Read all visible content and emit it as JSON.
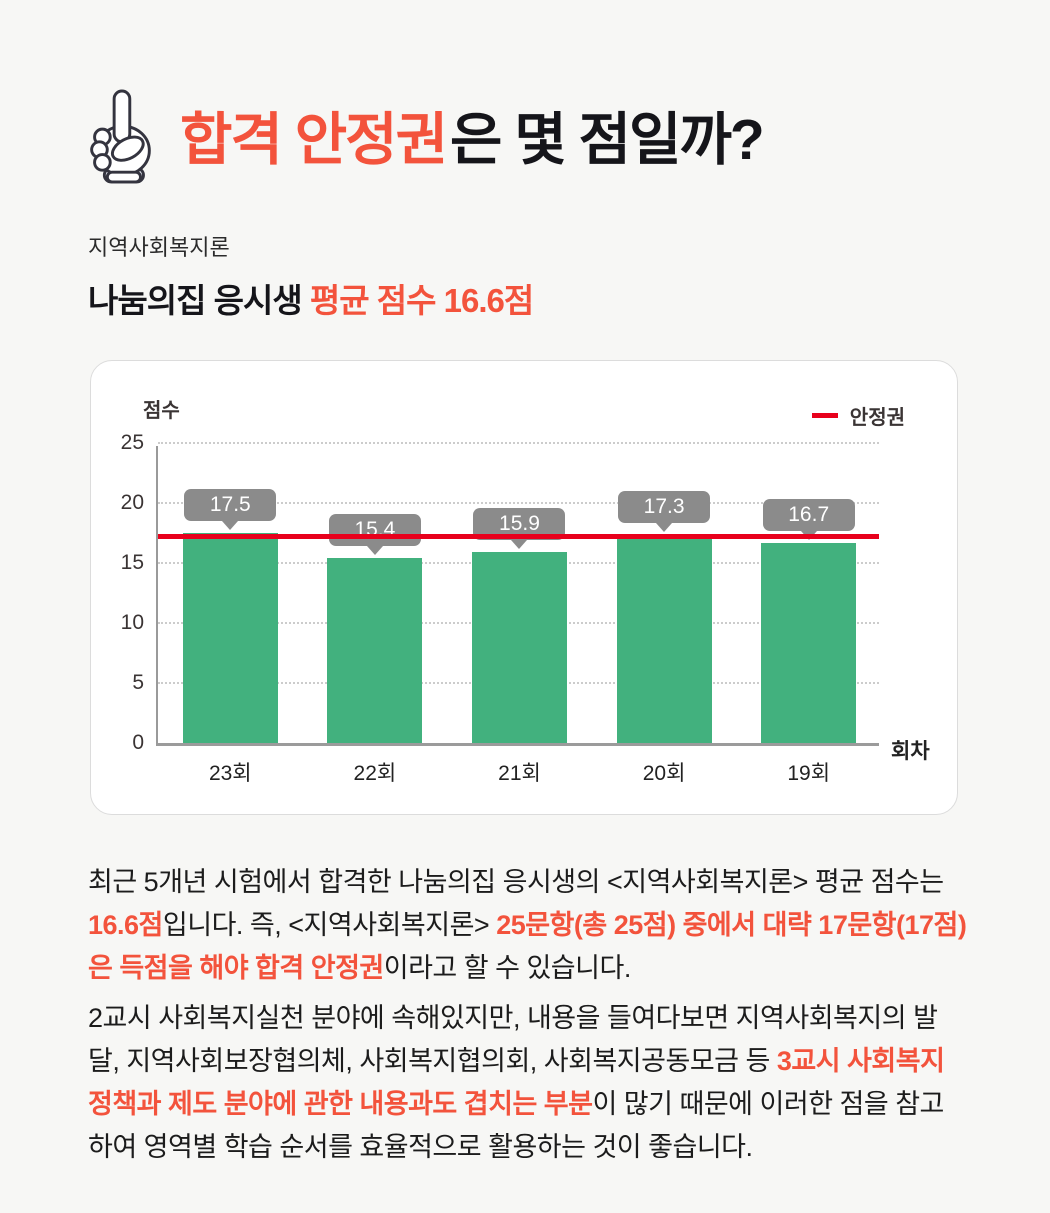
{
  "header": {
    "icon": "pointing-hand",
    "title_accent": "합격 안정권",
    "title_rest": "은 몇 점일까?"
  },
  "subject": {
    "label": "지역사회복지론",
    "heading_black": "나눔의집 응시생 ",
    "heading_accent": "평균 점수 16.6점"
  },
  "chart_data": {
    "type": "bar",
    "title": "",
    "ylabel": "점수",
    "xlabel": "회차",
    "categories": [
      "23회",
      "22회",
      "21회",
      "20회",
      "19회"
    ],
    "values": [
      17.5,
      15.4,
      15.9,
      17.3,
      16.7
    ],
    "value_labels": [
      "17.5",
      "15.4",
      "15.9",
      "17.3",
      "16.7"
    ],
    "ylim": [
      0,
      25
    ],
    "yticks": [
      0,
      5,
      10,
      15,
      20,
      25
    ],
    "grid": "dotted-horizontal",
    "legend_position": "top-right",
    "legend": [
      {
        "label": "안정권",
        "type": "line",
        "color": "#e8001c"
      }
    ],
    "threshold_line": {
      "label": "안정권",
      "value": 17.2,
      "color": "#e8001c"
    },
    "bar_color": "#42b17e",
    "value_label_bg": "#8b8b8b"
  },
  "body": {
    "paragraph1": [
      {
        "text": "최근 5개년 시험에서 합격한 나눔의집 응시생의 <지역사회복지론> 평균 점수는 ",
        "style": "normal"
      },
      {
        "text": "16.6점",
        "style": "accent"
      },
      {
        "text": "입니다. 즉, <지역사회복지론> ",
        "style": "normal"
      },
      {
        "text": "25문항(총 25점) 중에서 대략 17문항(17점)은 득점을 해야 합격 안정권",
        "style": "accent"
      },
      {
        "text": "이라고 할 수 있습니다.",
        "style": "normal"
      }
    ],
    "paragraph2": [
      {
        "text": "2교시 사회복지실천 분야에 속해있지만, 내용을 들여다보면 지역사회복지의 발달, 지역사회보장협의체, 사회복지협의회, 사회복지공동모금 등 ",
        "style": "normal"
      },
      {
        "text": "3교시 사회복지정책과 제도 분야에 관한 내용과도 겹치는 부분",
        "style": "accent"
      },
      {
        "text": "이 많기 때문에 이러한 점을 참고하여 영역별 학습 순서를 효율적으로 활용하는 것이 좋습니다.",
        "style": "normal"
      }
    ]
  },
  "colors": {
    "accent": "#f3533c",
    "bar_green": "#42b17e",
    "line_red": "#e8001c",
    "callout_gray": "#8b8b8b",
    "background": "#f7f7f5",
    "card_background": "#ffffff"
  }
}
